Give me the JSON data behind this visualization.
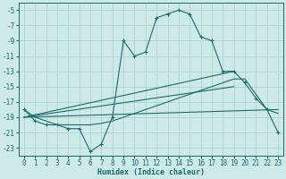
{
  "xlabel": "Humidex (Indice chaleur)",
  "xlim": [
    -0.5,
    23.5
  ],
  "ylim": [
    -24,
    -4
  ],
  "yticks": [
    -5,
    -7,
    -9,
    -11,
    -13,
    -15,
    -17,
    -19,
    -21,
    -23
  ],
  "xticks": [
    0,
    1,
    2,
    3,
    4,
    5,
    6,
    7,
    8,
    9,
    10,
    11,
    12,
    13,
    14,
    15,
    16,
    17,
    18,
    19,
    20,
    21,
    22,
    23
  ],
  "bg_color": "#ceeae8",
  "grid_color": "#aed4d2",
  "line_color": "#1a6b6b",
  "lines": [
    {
      "x": [
        0,
        1,
        2,
        3,
        4,
        5,
        6,
        7,
        8,
        9,
        10,
        11,
        12,
        13,
        14,
        15,
        16,
        17,
        18,
        19,
        20,
        21,
        22,
        23
      ],
      "y": [
        -18,
        -19.5,
        -20,
        -20,
        -20.5,
        -20.5,
        -23.5,
        -22.5,
        -19,
        -9,
        -11,
        -10.5,
        -6,
        -5.5,
        -5,
        -5.5,
        -8.5,
        -9,
        -13,
        -13,
        -14.5,
        -16.5,
        -18,
        -21
      ],
      "marker": true
    },
    {
      "x": [
        0,
        1,
        2,
        3,
        4,
        5,
        6,
        7,
        8,
        9,
        10,
        11,
        12,
        13,
        14,
        15,
        16,
        17,
        18,
        19,
        20,
        22,
        23
      ],
      "y": [
        -18,
        -19,
        -19.5,
        -20,
        -20,
        -20,
        -20,
        -19.8,
        -19.5,
        -19,
        -18.5,
        -18,
        -17.5,
        -17,
        -16.5,
        -16,
        -15.5,
        -15,
        -14.5,
        -14,
        -14,
        -18,
        -18.5
      ],
      "marker": false
    },
    {
      "x": [
        0,
        19
      ],
      "y": [
        -19,
        -13
      ],
      "marker": false
    },
    {
      "x": [
        0,
        19
      ],
      "y": [
        -19,
        -15
      ],
      "marker": false
    },
    {
      "x": [
        0,
        23
      ],
      "y": [
        -19,
        -18
      ],
      "marker": false
    }
  ]
}
